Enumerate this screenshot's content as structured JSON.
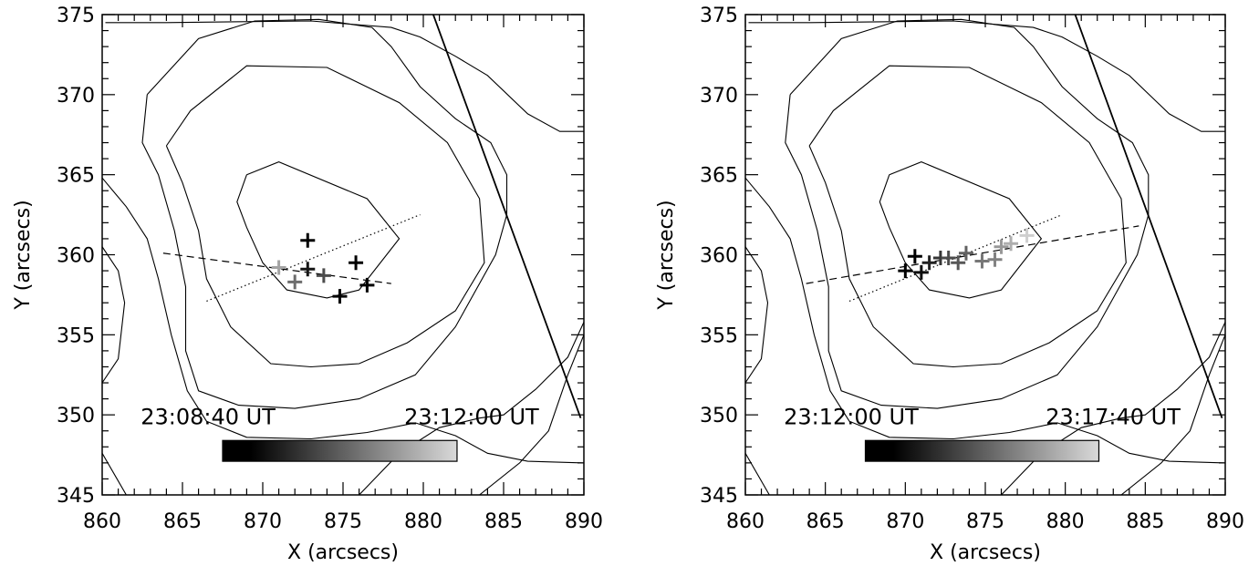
{
  "chart_data": [
    {
      "type": "scatter",
      "xlabel": "X (arcsecs)",
      "ylabel": "Y (arcsecs)",
      "xlim": [
        860,
        890
      ],
      "ylim": [
        345,
        375
      ],
      "x_ticks": [
        860,
        865,
        870,
        875,
        880,
        885,
        890
      ],
      "y_ticks": [
        345,
        350,
        355,
        360,
        365,
        370,
        375
      ],
      "grid": false,
      "time_start": "23:08:40 UT",
      "time_end": "23:12:00 UT",
      "colorbar": {
        "from": "#000000",
        "to": "#d9d9d9"
      },
      "points": [
        {
          "x": 871.0,
          "y": 359.2,
          "shade": 0.75
        },
        {
          "x": 872.0,
          "y": 358.3,
          "shade": 0.5
        },
        {
          "x": 873.8,
          "y": 358.7,
          "shade": 0.35
        },
        {
          "x": 872.8,
          "y": 359.1,
          "shade": 0.1
        },
        {
          "x": 872.8,
          "y": 360.9,
          "shade": 0.0
        },
        {
          "x": 875.8,
          "y": 359.5,
          "shade": 0.0
        },
        {
          "x": 874.8,
          "y": 357.4,
          "shade": 0.0
        },
        {
          "x": 876.5,
          "y": 358.1,
          "shade": 0.0
        }
      ],
      "dashed_line": [
        [
          863.8,
          360.1
        ],
        [
          878.0,
          358.2
        ]
      ],
      "dotted_line": [
        [
          866.5,
          357.1
        ],
        [
          879.8,
          362.5
        ]
      ],
      "limb_line": [
        [
          880.4,
          375.6
        ],
        [
          889.8,
          349.8
        ]
      ],
      "contours": [
        [
          [
            869.0,
            365.0
          ],
          [
            871.0,
            365.8
          ],
          [
            876.5,
            363.5
          ],
          [
            878.5,
            361.0
          ],
          [
            876.0,
            357.8
          ],
          [
            874.0,
            357.3
          ],
          [
            871.5,
            357.8
          ],
          [
            870.0,
            359.5
          ],
          [
            869.0,
            361.7
          ],
          [
            868.4,
            363.3
          ],
          [
            869.0,
            365.0
          ]
        ],
        [
          [
            864.0,
            366.8
          ],
          [
            865.5,
            369.0
          ],
          [
            869.0,
            371.8
          ],
          [
            874.0,
            371.7
          ],
          [
            878.5,
            369.5
          ],
          [
            881.5,
            367.0
          ],
          [
            883.5,
            363.5
          ],
          [
            883.8,
            359.5
          ],
          [
            882.0,
            356.5
          ],
          [
            879.0,
            354.5
          ],
          [
            876.0,
            353.2
          ],
          [
            873.0,
            353.0
          ],
          [
            870.5,
            353.2
          ],
          [
            868.0,
            355.5
          ],
          [
            866.5,
            358.5
          ],
          [
            866.0,
            361.5
          ],
          [
            865.0,
            364.5
          ],
          [
            864.0,
            366.8
          ]
        ],
        [
          [
            862.8,
            370.0
          ],
          [
            866.0,
            373.5
          ],
          [
            869.5,
            374.6
          ],
          [
            873.5,
            374.7
          ],
          [
            876.8,
            374.2
          ],
          [
            878.0,
            373.0
          ],
          [
            879.8,
            370.5
          ],
          [
            882.0,
            368.5
          ],
          [
            884.2,
            367.0
          ],
          [
            885.2,
            365.0
          ],
          [
            885.2,
            362.5
          ],
          [
            884.5,
            360.0
          ],
          [
            882.0,
            355.5
          ],
          [
            879.5,
            352.5
          ],
          [
            876.0,
            351.0
          ],
          [
            872.0,
            350.4
          ],
          [
            868.5,
            350.6
          ],
          [
            866.0,
            351.5
          ],
          [
            865.2,
            354.0
          ],
          [
            865.2,
            358.0
          ],
          [
            864.5,
            361.5
          ],
          [
            863.5,
            365.0
          ],
          [
            862.5,
            367.0
          ],
          [
            862.8,
            370.0
          ]
        ],
        [
          [
            860.2,
            374.5
          ],
          [
            864.0,
            374.5
          ],
          [
            873.0,
            374.6
          ],
          [
            878.0,
            374.2
          ],
          [
            879.8,
            373.6
          ],
          [
            882.0,
            372.4
          ],
          [
            884.0,
            371.2
          ],
          [
            886.5,
            368.8
          ],
          [
            888.5,
            367.7
          ],
          [
            890.0,
            367.7
          ]
        ],
        [
          [
            860.0,
            364.8
          ],
          [
            861.5,
            363.0
          ],
          [
            862.8,
            361.0
          ],
          [
            863.5,
            358.5
          ],
          [
            864.3,
            355.0
          ],
          [
            865.3,
            351.5
          ],
          [
            866.5,
            349.6
          ],
          [
            869.0,
            348.6
          ],
          [
            873.0,
            348.5
          ],
          [
            876.5,
            348.9
          ],
          [
            879.5,
            349.5
          ],
          [
            882.0,
            348.7
          ],
          [
            884.0,
            347.6
          ],
          [
            886.5,
            347.1
          ],
          [
            890.0,
            347.0
          ]
        ],
        [
          [
            860.0,
            360.5
          ],
          [
            861.0,
            359.0
          ],
          [
            861.4,
            357.0
          ],
          [
            861.0,
            353.5
          ],
          [
            860.0,
            352.0
          ]
        ],
        [
          [
            860.0,
            347.6
          ],
          [
            861.5,
            345.0
          ]
        ],
        [
          [
            883.5,
            345.0
          ],
          [
            886.0,
            347.0
          ],
          [
            887.8,
            349.0
          ],
          [
            889.0,
            352.5
          ],
          [
            890.0,
            355.0
          ]
        ],
        [
          [
            876.0,
            345.0
          ],
          [
            878.5,
            347.6
          ],
          [
            881.0,
            349.2
          ],
          [
            883.5,
            349.8
          ],
          [
            885.0,
            350.0
          ],
          [
            887.0,
            351.6
          ],
          [
            889.0,
            353.6
          ],
          [
            890.0,
            355.8
          ]
        ]
      ]
    },
    {
      "type": "scatter",
      "xlabel": "X (arcsecs)",
      "ylabel": "Y (arcsecs)",
      "xlim": [
        860,
        890
      ],
      "ylim": [
        345,
        375
      ],
      "x_ticks": [
        860,
        865,
        870,
        875,
        880,
        885,
        890
      ],
      "y_ticks": [
        345,
        350,
        355,
        360,
        365,
        370,
        375
      ],
      "grid": false,
      "time_start": "23:12:00 UT",
      "time_end": "23:17:40 UT",
      "colorbar": {
        "from": "#000000",
        "to": "#d9d9d9"
      },
      "points": [
        {
          "x": 870.0,
          "y": 359.0,
          "shade": 0.0
        },
        {
          "x": 870.6,
          "y": 359.9,
          "shade": 0.0
        },
        {
          "x": 871.0,
          "y": 358.9,
          "shade": 0.05
        },
        {
          "x": 871.5,
          "y": 359.5,
          "shade": 0.15
        },
        {
          "x": 872.2,
          "y": 359.8,
          "shade": 0.25
        },
        {
          "x": 872.7,
          "y": 359.8,
          "shade": 0.35
        },
        {
          "x": 873.3,
          "y": 359.5,
          "shade": 0.4
        },
        {
          "x": 873.8,
          "y": 360.1,
          "shade": 0.45
        },
        {
          "x": 874.8,
          "y": 359.6,
          "shade": 0.55
        },
        {
          "x": 875.6,
          "y": 359.7,
          "shade": 0.6
        },
        {
          "x": 876.0,
          "y": 360.5,
          "shade": 0.7
        },
        {
          "x": 876.6,
          "y": 360.7,
          "shade": 0.8
        },
        {
          "x": 877.6,
          "y": 361.2,
          "shade": 0.95
        }
      ],
      "dashed_line": [
        [
          863.8,
          358.2
        ],
        [
          884.6,
          361.8
        ]
      ],
      "dotted_line": [
        [
          866.5,
          357.1
        ],
        [
          879.8,
          362.5
        ]
      ],
      "limb_line": [
        [
          880.4,
          375.6
        ],
        [
          889.8,
          349.8
        ]
      ],
      "contours": [
        [
          [
            869.0,
            365.0
          ],
          [
            871.0,
            365.8
          ],
          [
            876.5,
            363.5
          ],
          [
            878.5,
            361.0
          ],
          [
            876.0,
            357.8
          ],
          [
            874.0,
            357.3
          ],
          [
            871.5,
            357.8
          ],
          [
            870.0,
            359.5
          ],
          [
            869.0,
            361.7
          ],
          [
            868.4,
            363.3
          ],
          [
            869.0,
            365.0
          ]
        ],
        [
          [
            864.0,
            366.8
          ],
          [
            865.5,
            369.0
          ],
          [
            869.0,
            371.8
          ],
          [
            874.0,
            371.7
          ],
          [
            878.5,
            369.5
          ],
          [
            881.5,
            367.0
          ],
          [
            883.5,
            363.5
          ],
          [
            883.8,
            359.5
          ],
          [
            882.0,
            356.5
          ],
          [
            879.0,
            354.5
          ],
          [
            876.0,
            353.2
          ],
          [
            873.0,
            353.0
          ],
          [
            870.5,
            353.2
          ],
          [
            868.0,
            355.5
          ],
          [
            866.5,
            358.5
          ],
          [
            866.0,
            361.5
          ],
          [
            865.0,
            364.5
          ],
          [
            864.0,
            366.8
          ]
        ],
        [
          [
            862.8,
            370.0
          ],
          [
            866.0,
            373.5
          ],
          [
            869.5,
            374.6
          ],
          [
            873.5,
            374.7
          ],
          [
            876.8,
            374.2
          ],
          [
            878.0,
            373.0
          ],
          [
            879.8,
            370.5
          ],
          [
            882.0,
            368.5
          ],
          [
            884.2,
            367.0
          ],
          [
            885.2,
            365.0
          ],
          [
            885.2,
            362.5
          ],
          [
            884.5,
            360.0
          ],
          [
            882.0,
            355.5
          ],
          [
            879.5,
            352.5
          ],
          [
            876.0,
            351.0
          ],
          [
            872.0,
            350.4
          ],
          [
            868.5,
            350.6
          ],
          [
            866.0,
            351.5
          ],
          [
            865.2,
            354.0
          ],
          [
            865.2,
            358.0
          ],
          [
            864.5,
            361.5
          ],
          [
            863.5,
            365.0
          ],
          [
            862.5,
            367.0
          ],
          [
            862.8,
            370.0
          ]
        ],
        [
          [
            860.2,
            374.5
          ],
          [
            864.0,
            374.5
          ],
          [
            873.0,
            374.6
          ],
          [
            878.0,
            374.2
          ],
          [
            879.8,
            373.6
          ],
          [
            882.0,
            372.4
          ],
          [
            884.0,
            371.2
          ],
          [
            886.5,
            368.8
          ],
          [
            888.5,
            367.7
          ],
          [
            890.0,
            367.7
          ]
        ],
        [
          [
            860.0,
            364.8
          ],
          [
            861.5,
            363.0
          ],
          [
            862.8,
            361.0
          ],
          [
            863.5,
            358.5
          ],
          [
            864.3,
            355.0
          ],
          [
            865.3,
            351.5
          ],
          [
            866.5,
            349.6
          ],
          [
            869.0,
            348.6
          ],
          [
            873.0,
            348.5
          ],
          [
            876.5,
            348.9
          ],
          [
            879.5,
            349.5
          ],
          [
            882.0,
            348.7
          ],
          [
            884.0,
            347.6
          ],
          [
            886.5,
            347.1
          ],
          [
            890.0,
            347.0
          ]
        ],
        [
          [
            860.0,
            360.5
          ],
          [
            861.0,
            359.0
          ],
          [
            861.4,
            357.0
          ],
          [
            861.0,
            353.5
          ],
          [
            860.0,
            352.0
          ]
        ],
        [
          [
            860.0,
            347.6
          ],
          [
            861.5,
            345.0
          ]
        ],
        [
          [
            883.5,
            345.0
          ],
          [
            886.0,
            347.0
          ],
          [
            887.8,
            349.0
          ],
          [
            889.0,
            352.5
          ],
          [
            890.0,
            355.0
          ]
        ],
        [
          [
            876.0,
            345.0
          ],
          [
            878.5,
            347.6
          ],
          [
            881.0,
            349.2
          ],
          [
            883.5,
            349.8
          ],
          [
            885.0,
            350.0
          ],
          [
            887.0,
            351.6
          ],
          [
            889.0,
            353.6
          ],
          [
            890.0,
            355.8
          ]
        ]
      ]
    }
  ]
}
